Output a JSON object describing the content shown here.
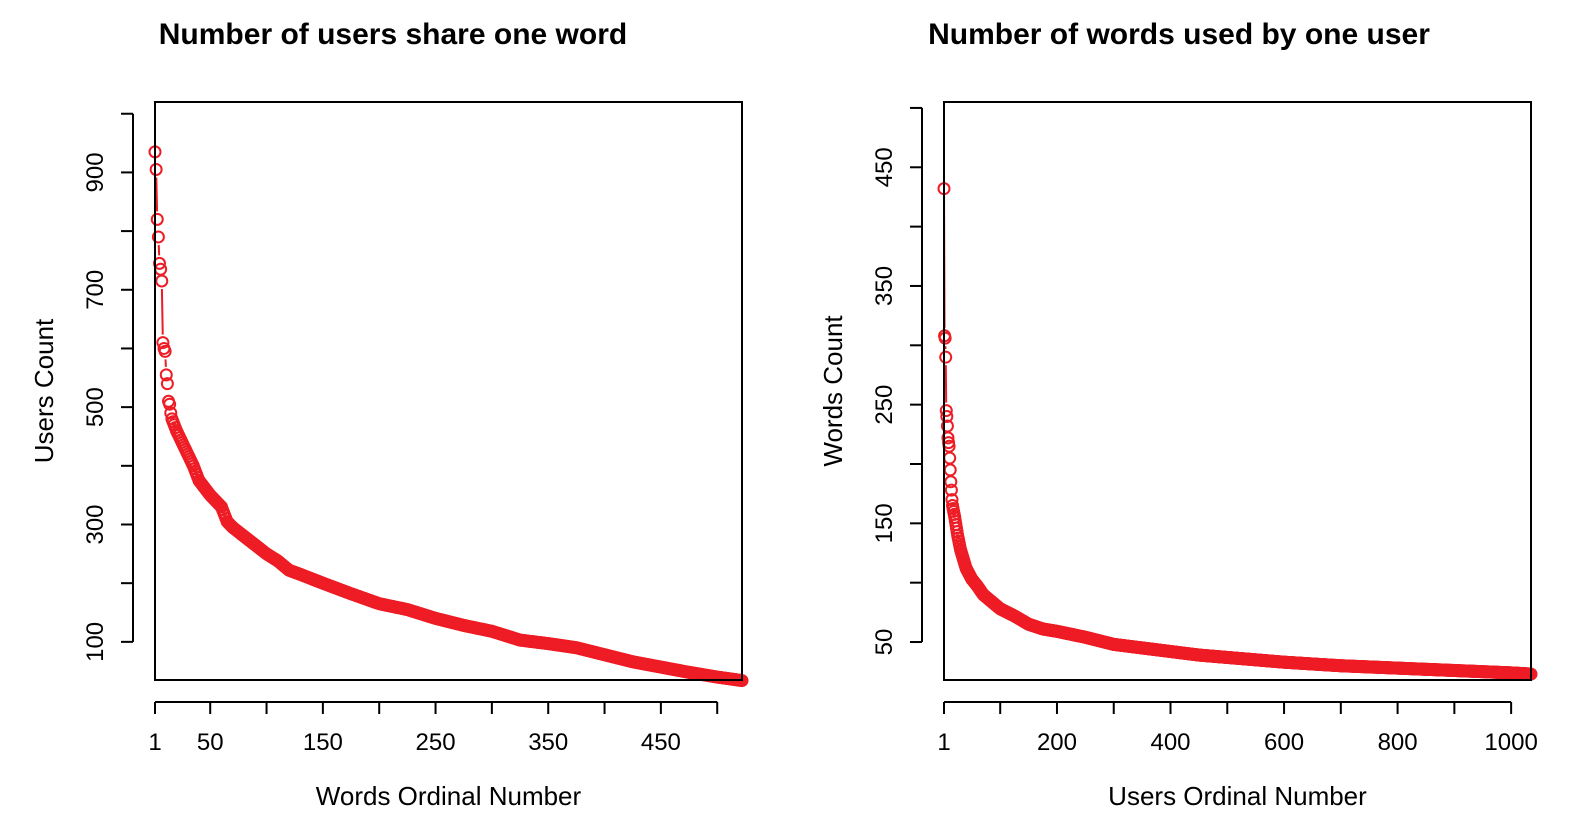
{
  "chart_data": [
    {
      "type": "line",
      "title": "Number of users share one word",
      "xlabel": "Words Ordinal Number",
      "ylabel": "Users Count",
      "xlim": [
        1,
        522
      ],
      "ylim": [
        35,
        1020
      ],
      "x_ticks": [
        1,
        50,
        100,
        150,
        200,
        250,
        300,
        350,
        400,
        450,
        500
      ],
      "x_tick_labels": [
        "1",
        "50",
        "",
        "150",
        "",
        "250",
        "",
        "350",
        "",
        "450",
        ""
      ],
      "y_ticks": [
        100,
        200,
        300,
        400,
        500,
        600,
        700,
        800,
        900,
        1000
      ],
      "y_tick_labels": [
        "100",
        "",
        "300",
        "",
        "500",
        "",
        "700",
        "",
        "900",
        ""
      ],
      "n_points": 522,
      "color": "#ee1c25",
      "grid": false,
      "series": [
        {
          "x": [
            1,
            2,
            3,
            4,
            5,
            6,
            7,
            8,
            9,
            10,
            11,
            12,
            13,
            14,
            15,
            16,
            18,
            20,
            25,
            30,
            35,
            40,
            50,
            60,
            65,
            70,
            80,
            90,
            100,
            110,
            120,
            130,
            150,
            175,
            200,
            225,
            250,
            275,
            300,
            325,
            350,
            375,
            400,
            425,
            450,
            475,
            500,
            522
          ],
          "values": [
            935,
            905,
            820,
            790,
            745,
            735,
            715,
            610,
            600,
            595,
            555,
            540,
            510,
            505,
            490,
            480,
            470,
            460,
            440,
            420,
            400,
            375,
            350,
            330,
            305,
            295,
            280,
            265,
            250,
            238,
            222,
            215,
            200,
            182,
            165,
            155,
            140,
            128,
            118,
            103,
            97,
            90,
            78,
            66,
            57,
            48,
            40,
            34
          ]
        }
      ]
    },
    {
      "type": "line",
      "title": "Number of words used by one user",
      "xlabel": "Users Ordinal Number",
      "ylabel": "Words Count",
      "xlim": [
        1,
        1035
      ],
      "ylim": [
        18,
        505
      ],
      "x_ticks": [
        1,
        100,
        200,
        300,
        400,
        500,
        600,
        700,
        800,
        900,
        1000
      ],
      "x_tick_labels": [
        "1",
        "",
        "200",
        "",
        "400",
        "",
        "600",
        "",
        "800",
        "",
        "1000"
      ],
      "y_ticks": [
        50,
        100,
        150,
        200,
        250,
        300,
        350,
        400,
        450,
        500
      ],
      "y_tick_labels": [
        "50",
        "",
        "150",
        "",
        "250",
        "",
        "350",
        "",
        "450",
        ""
      ],
      "n_points": 1035,
      "color": "#ee1c25",
      "grid": false,
      "series": [
        {
          "x": [
            1,
            2,
            3,
            4,
            5,
            6,
            7,
            8,
            9,
            10,
            11,
            12,
            13,
            14,
            15,
            16,
            18,
            20,
            25,
            30,
            40,
            50,
            60,
            70,
            80,
            100,
            125,
            150,
            175,
            200,
            250,
            300,
            350,
            400,
            450,
            500,
            600,
            700,
            800,
            900,
            1000,
            1035
          ],
          "values": [
            432,
            308,
            306,
            290,
            245,
            240,
            232,
            222,
            218,
            215,
            205,
            195,
            185,
            178,
            170,
            165,
            160,
            155,
            140,
            128,
            112,
            103,
            97,
            90,
            86,
            78,
            72,
            65,
            61,
            59,
            54,
            48,
            45,
            42,
            39,
            37,
            33,
            30,
            28,
            26,
            24,
            23
          ]
        }
      ]
    }
  ]
}
